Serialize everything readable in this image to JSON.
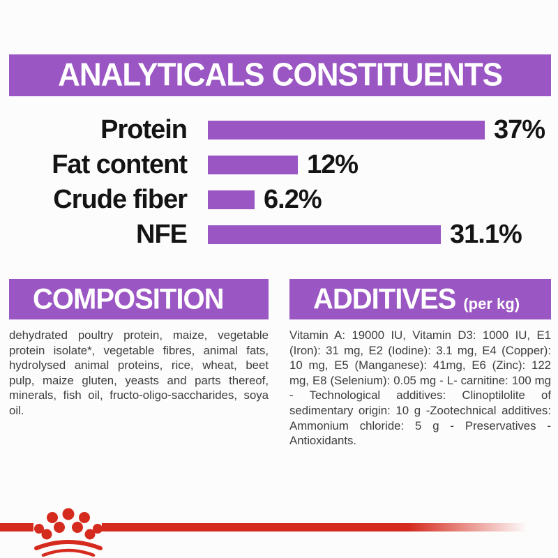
{
  "colors": {
    "purple": "#9a56c3",
    "red": "#d52b1e",
    "background": "#fdfcfc",
    "body_text": "#3c3c3c",
    "chart_text": "#141414"
  },
  "header": {
    "title": "ANALYTICALS CONSTITUENTS"
  },
  "chart_data": {
    "type": "bar",
    "orientation": "horizontal",
    "title": "ANALYTICALS CONSTITUENTS",
    "categories": [
      "Protein",
      "Fat content",
      "Crude fiber",
      "NFE"
    ],
    "values": [
      37,
      12,
      6.2,
      31.1
    ],
    "value_labels": [
      "37%",
      "12%",
      "6.2%",
      "31.1%"
    ],
    "unit": "percent",
    "xlim": [
      0,
      37
    ],
    "grid": false,
    "legend": false,
    "bar_color": "#9a56c3"
  },
  "composition": {
    "title": "COMPOSITION",
    "body": "dehydrated poultry protein, maize, vegetable protein isolate*, vegetable fibres, animal fats, hydrolysed animal proteins, rice, wheat, beet pulp, maize gluten, yeasts and parts thereof, minerals, fish oil, fructo-oligo-saccharides, soya oil."
  },
  "additives": {
    "title": "ADDITIVES",
    "unit_label": "(per kg)",
    "body": "Vitamin A: 19000 IU, Vitamin D3: 1000 IU, E1 (Iron): 31 mg, E2 (Iodine): 3.1 mg, E4 (Copper): 10 mg, E5 (Manganese): 41mg, E6 (Zinc): 122 mg, E8 (Selenium): 0.05 mg - L- carnitine: 100 mg - Technological additives: Clinoptilolite of sedimentary origin: 10 g -Zootechnical additives: Ammonium chloride: 5 g - Preservatives - Antioxidants."
  },
  "footer": {
    "brand_icon": "royal-canin-crown-icon"
  }
}
